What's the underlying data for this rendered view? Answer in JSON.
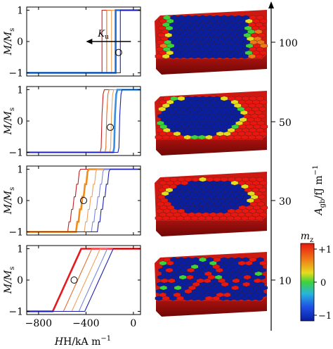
{
  "labels": {
    "ylabel_row": "M/M",
    "ylabel_sub": "s",
    "xlabel_main": "H/kA m",
    "xlabel_exp": "−1",
    "right_axis_main": "A",
    "right_axis_sub": "gb",
    "right_axis_unit": "/fJ m",
    "right_axis_exp": "−1",
    "colorbar_label": "m",
    "colorbar_sub": "z",
    "ku_label": "K",
    "ku_sub": "u"
  },
  "colorbar": {
    "ticks": [
      "+1",
      "0",
      "−1"
    ],
    "colors": [
      "#e8170f",
      "#f07818",
      "#e6dc1e",
      "#3cd23c",
      "#28b4dc",
      "#1e50e6",
      "#0a1ea0"
    ]
  },
  "chart_data": [
    {
      "type": "line",
      "panel": "Agb=100",
      "xlim": [
        -900,
        60
      ],
      "ylim": [
        -1.1,
        1.1
      ],
      "xticks": [
        "−800",
        "−400",
        "0"
      ],
      "yticks": [
        "1",
        "0",
        "−1"
      ],
      "xlabel": "H/kA m−1",
      "ylabel": "M/Ms",
      "right_value": "100",
      "switching_fields": [
        -265,
        -225,
        -185,
        -150,
        -110
      ],
      "colors": [
        "#c81e1e",
        "#e66e2a",
        "#f2a05a",
        "#7c86dc",
        "#1e1eb4"
      ],
      "highlight": {
        "index": 3,
        "color": "#1e6ed2"
      },
      "marker": {
        "h": -125,
        "m": -0.35
      },
      "arrow": {
        "label": "Ku",
        "from_h": -110,
        "to_h": -400,
        "m": 0.0
      }
    },
    {
      "type": "line",
      "panel": "Agb=50",
      "xlim": [
        -900,
        60
      ],
      "ylim": [
        -1.1,
        1.1
      ],
      "xticks": [
        "−800",
        "−400",
        "0"
      ],
      "yticks": [
        "1",
        "0",
        "−1"
      ],
      "xlabel": "H/kA m−1",
      "ylabel": "M/Ms",
      "right_value": "50",
      "switching_fields": [
        -280,
        -240,
        -200,
        -170,
        -130
      ],
      "colors": [
        "#c81e1e",
        "#e66e2a",
        "#f2a05a",
        "#3a8ee0",
        "#1e1eb4"
      ],
      "highlight": {
        "index": 3,
        "color": "#3a8ee0"
      },
      "marker": {
        "h": -195,
        "m": -0.2
      }
    },
    {
      "type": "line",
      "panel": "Agb=30",
      "xlim": [
        -900,
        60
      ],
      "ylim": [
        -1.1,
        1.1
      ],
      "xticks": [
        "−800",
        "−400",
        "0"
      ],
      "yticks": [
        "1",
        "0",
        "−1"
      ],
      "xlabel": "H/kA m−1",
      "ylabel": "M/Ms",
      "right_value": "30",
      "switching_fields": [
        -500,
        -430,
        -360,
        -300,
        -250
      ],
      "colors": [
        "#c81e1e",
        "#f08c1e",
        "#f2a05a",
        "#7c86dc",
        "#1e1eb4"
      ],
      "highlight": {
        "index": 1,
        "color": "#f08c1e"
      },
      "marker": {
        "h": -420,
        "m": 0.0
      }
    },
    {
      "type": "line",
      "panel": "Agb=10",
      "xlim": [
        -900,
        60
      ],
      "ylim": [
        -1.1,
        1.1
      ],
      "xticks": [
        "−800",
        "−400",
        "0"
      ],
      "yticks": [
        "1",
        "0",
        "−1"
      ],
      "xlabel": "H/kA m−1",
      "ylabel": "M/Ms",
      "right_value": "10",
      "switching_fields": [
        -560,
        -470,
        -400,
        -340,
        -290
      ],
      "colors": [
        "#e6191e",
        "#e66e2a",
        "#f2a05a",
        "#7c86dc",
        "#1e1eb4"
      ],
      "highlight": {
        "index": 0,
        "color": "#e6191e"
      },
      "marker": {
        "h": -500,
        "m": 0.0
      }
    }
  ]
}
